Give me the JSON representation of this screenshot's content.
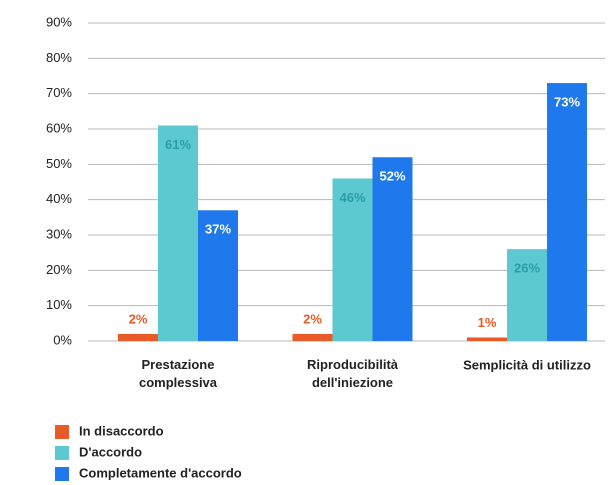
{
  "chart_data": {
    "type": "bar",
    "categories": [
      "Prestazione\ncomplessiva",
      "Riproducibilità\ndell'iniezione",
      "Semplicità di utilizzo"
    ],
    "series": [
      {
        "name": "In disaccordo",
        "color": "#e85a28",
        "label_color": "#e85a28",
        "values": [
          2,
          2,
          1
        ],
        "value_labels": [
          "2%",
          "2%",
          "1%"
        ]
      },
      {
        "name": "D'accordo",
        "color": "#5cc9d1",
        "label_color": "#2a9ea6",
        "values": [
          61,
          46,
          26
        ],
        "value_labels": [
          "61%",
          "46%",
          "26%"
        ]
      },
      {
        "name": "Completamente d'accordo",
        "color": "#1f78ec",
        "label_color": "#ffffff",
        "values": [
          37,
          52,
          73
        ],
        "value_labels": [
          "37%",
          "52%",
          "73%"
        ]
      }
    ],
    "ylim": [
      0,
      90
    ],
    "yticks": [
      {
        "value": 0,
        "label": "0%"
      },
      {
        "value": 10,
        "label": "10%"
      },
      {
        "value": 20,
        "label": "20%"
      },
      {
        "value": 30,
        "label": "30%"
      },
      {
        "value": 40,
        "label": "40%"
      },
      {
        "value": 50,
        "label": "50%"
      },
      {
        "value": 60,
        "label": "60%"
      },
      {
        "value": 70,
        "label": "70%"
      },
      {
        "value": 80,
        "label": "80%"
      },
      {
        "value": 90,
        "label": "90%"
      }
    ],
    "grid": true
  }
}
